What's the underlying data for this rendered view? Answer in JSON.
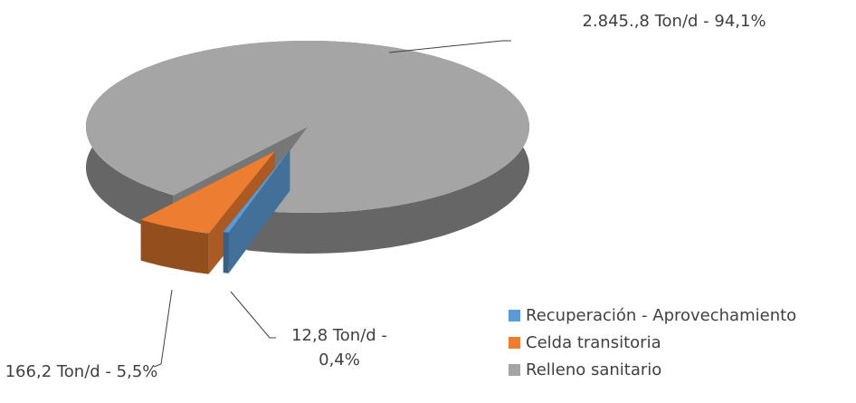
{
  "chart_data": {
    "type": "pie3d",
    "categories": [
      "Recuperación - Aprovechamiento",
      "Celda transitoria",
      "Relleno sanitario"
    ],
    "values": [
      0.4,
      5.5,
      94.1
    ],
    "value_labels": [
      "12,8 Ton/d - 0,4%",
      "166,2 Ton/d - 5,5%",
      "2.845.,8 Ton/d - 94,1%"
    ],
    "colors": [
      "#5b9bd5",
      "#ed7d31",
      "#a5a5a5"
    ],
    "legend": "right"
  }
}
